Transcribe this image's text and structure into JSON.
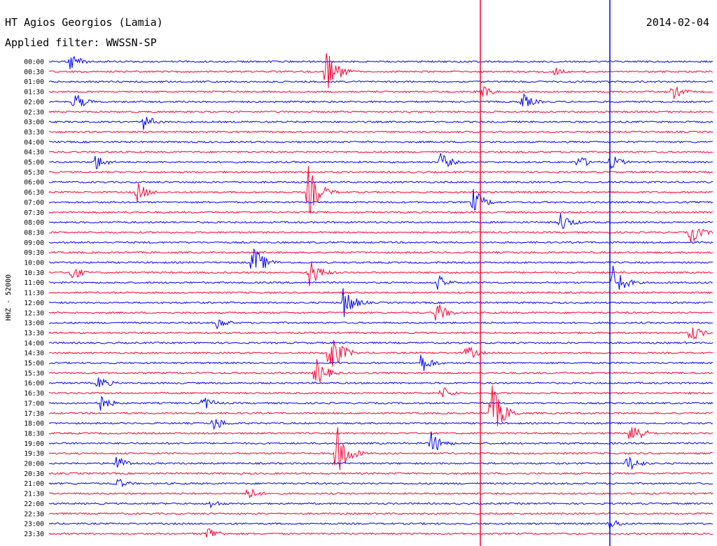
{
  "header": {
    "station": "HT Agios Georgios (Lamia)",
    "date": "2014-02-04",
    "filter": "Applied filter: WWSSN-SP"
  },
  "side_label": "HHZ - 52000",
  "chart_data": {
    "type": "line",
    "title": "HT Agios Georgios (Lamia)",
    "subtitle": "Applied filter: WWSSN-SP",
    "ylabel": "HHZ - 52000",
    "trace_labels": [
      "00:00",
      "00:30",
      "01:00",
      "01:30",
      "02:00",
      "02:30",
      "03:00",
      "03:30",
      "04:00",
      "04:30",
      "05:00",
      "05:30",
      "06:00",
      "06:30",
      "07:00",
      "07:30",
      "08:00",
      "08:30",
      "09:00",
      "09:30",
      "10:00",
      "10:30",
      "11:00",
      "11:30",
      "12:00",
      "12:30",
      "13:00",
      "13:30",
      "14:00",
      "14:30",
      "15:00",
      "15:30",
      "16:00",
      "16:30",
      "17:00",
      "17:30",
      "18:00",
      "18:30",
      "19:00",
      "19:30",
      "20:00",
      "20:30",
      "21:00",
      "21:30",
      "22:00",
      "22:30",
      "23:00",
      "23:30"
    ],
    "colors": [
      "#0000ff",
      "#ff0033"
    ],
    "legend": "none"
  }
}
